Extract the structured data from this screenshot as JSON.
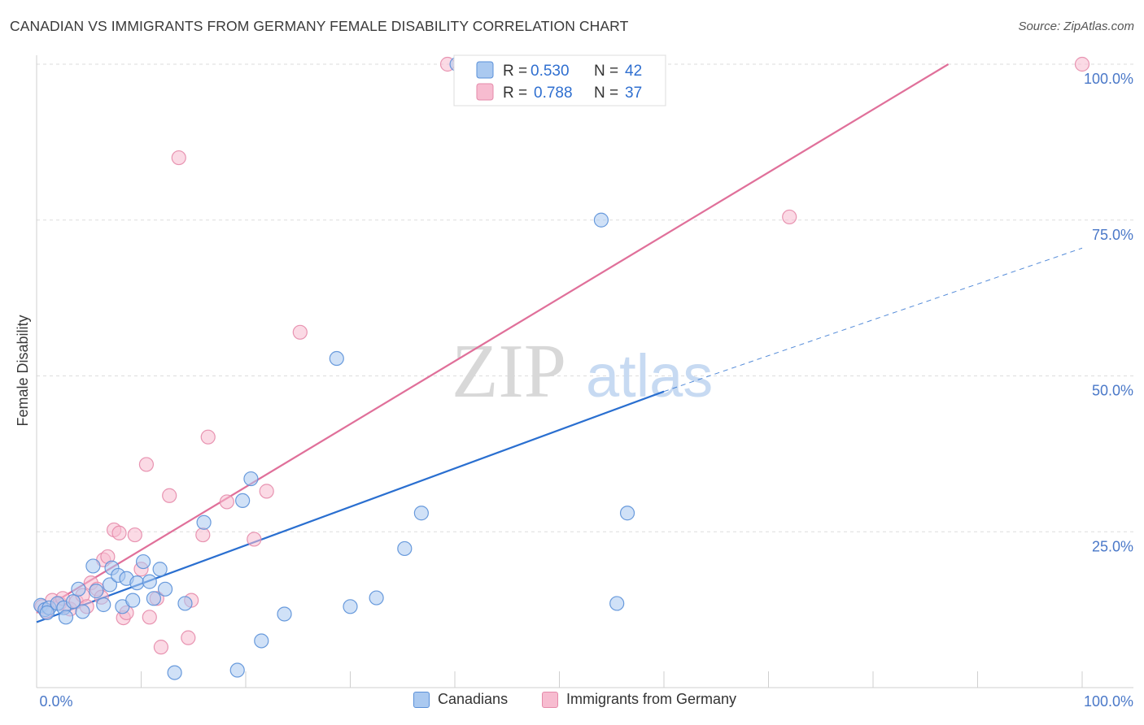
{
  "title": "CANADIAN VS IMMIGRANTS FROM GERMANY FEMALE DISABILITY CORRELATION CHART",
  "source": "Source: ZipAtlas.com",
  "watermark": {
    "zip": "ZIP",
    "atlas": "atlas"
  },
  "colors": {
    "blue_fill": "#aac9f0",
    "blue_stroke": "#5a90d8",
    "blue_line": "#2a6fd0",
    "pink_fill": "#f7bcd0",
    "pink_stroke": "#e58aaa",
    "pink_line": "#e0709a",
    "tick_text": "#4a78c8",
    "grid": "#dddddd"
  },
  "legend": {
    "rows": [
      {
        "r_label": "R =",
        "r_value": "0.530",
        "n_label": "N =",
        "n_value": "42"
      },
      {
        "r_label": "R =",
        "r_value": "0.788",
        "n_label": "N =",
        "n_value": "37"
      }
    ]
  },
  "bottom_legend": {
    "series1": "Canadians",
    "series2": "Immigrants from Germany"
  },
  "chart_data": {
    "type": "scatter",
    "title": "CANADIAN VS IMMIGRANTS FROM GERMANY FEMALE DISABILITY CORRELATION CHART",
    "xlabel": "",
    "ylabel": "Female Disability",
    "xlim": [
      0,
      100
    ],
    "ylim": [
      0,
      100
    ],
    "x_tick_labels": [
      "0.0%",
      "100.0%"
    ],
    "y_tick_labels": [
      {
        "value": 25,
        "label": "25.0%"
      },
      {
        "value": 50,
        "label": "50.0%"
      },
      {
        "value": 75,
        "label": "75.0%"
      },
      {
        "value": 100,
        "label": "100.0%"
      }
    ],
    "series": [
      {
        "name": "Canadians",
        "r": 0.53,
        "n": 42,
        "trend": {
          "x0": 0,
          "y0": 10.5,
          "x1": 60,
          "y1": 47.5,
          "dash_x1": 100,
          "dash_y1": 70.5
        },
        "points": [
          {
            "x": 0.4,
            "y": 13.2
          },
          {
            "x": 0.8,
            "y": 12.5
          },
          {
            "x": 1.2,
            "y": 12.8
          },
          {
            "x": 2.0,
            "y": 13.5
          },
          {
            "x": 2.6,
            "y": 12.8
          },
          {
            "x": 2.8,
            "y": 11.3
          },
          {
            "x": 3.5,
            "y": 13.8
          },
          {
            "x": 4.0,
            "y": 15.8
          },
          {
            "x": 4.4,
            "y": 12.2
          },
          {
            "x": 5.4,
            "y": 19.5
          },
          {
            "x": 5.7,
            "y": 15.5
          },
          {
            "x": 6.4,
            "y": 13.3
          },
          {
            "x": 7.0,
            "y": 16.5
          },
          {
            "x": 7.2,
            "y": 19.2
          },
          {
            "x": 7.8,
            "y": 18.0
          },
          {
            "x": 8.2,
            "y": 13.0
          },
          {
            "x": 8.6,
            "y": 17.5
          },
          {
            "x": 9.2,
            "y": 14.0
          },
          {
            "x": 9.6,
            "y": 16.8
          },
          {
            "x": 10.2,
            "y": 20.2
          },
          {
            "x": 10.8,
            "y": 17.0
          },
          {
            "x": 11.2,
            "y": 14.3
          },
          {
            "x": 11.8,
            "y": 19.0
          },
          {
            "x": 12.3,
            "y": 15.8
          },
          {
            "x": 13.2,
            "y": 2.4
          },
          {
            "x": 14.2,
            "y": 13.5
          },
          {
            "x": 16.0,
            "y": 26.5
          },
          {
            "x": 19.2,
            "y": 2.8
          },
          {
            "x": 19.7,
            "y": 30.0
          },
          {
            "x": 20.5,
            "y": 33.5
          },
          {
            "x": 21.5,
            "y": 7.5
          },
          {
            "x": 23.7,
            "y": 11.8
          },
          {
            "x": 28.7,
            "y": 52.8
          },
          {
            "x": 30.0,
            "y": 13.0
          },
          {
            "x": 32.5,
            "y": 14.4
          },
          {
            "x": 35.2,
            "y": 22.3
          },
          {
            "x": 36.8,
            "y": 28.0
          },
          {
            "x": 40.2,
            "y": 100.0
          },
          {
            "x": 54.0,
            "y": 75.0
          },
          {
            "x": 55.5,
            "y": 13.5
          },
          {
            "x": 56.5,
            "y": 28.0
          },
          {
            "x": 1.0,
            "y": 12.0
          }
        ]
      },
      {
        "name": "Immigrants from Germany",
        "r": 0.788,
        "n": 37,
        "trend": {
          "x0": 0,
          "y0": 12.0,
          "x1": 87.2,
          "y1": 100.0
        },
        "points": [
          {
            "x": 0.5,
            "y": 13.0
          },
          {
            "x": 0.9,
            "y": 12.2
          },
          {
            "x": 1.5,
            "y": 14.0
          },
          {
            "x": 2.2,
            "y": 13.5
          },
          {
            "x": 2.5,
            "y": 14.3
          },
          {
            "x": 3.2,
            "y": 12.6
          },
          {
            "x": 3.8,
            "y": 13.8
          },
          {
            "x": 4.4,
            "y": 14.8
          },
          {
            "x": 4.8,
            "y": 13.0
          },
          {
            "x": 5.2,
            "y": 16.8
          },
          {
            "x": 5.8,
            "y": 15.8
          },
          {
            "x": 6.2,
            "y": 14.5
          },
          {
            "x": 6.4,
            "y": 20.5
          },
          {
            "x": 6.8,
            "y": 21.0
          },
          {
            "x": 7.4,
            "y": 25.3
          },
          {
            "x": 7.9,
            "y": 24.8
          },
          {
            "x": 8.3,
            "y": 11.2
          },
          {
            "x": 8.6,
            "y": 12.0
          },
          {
            "x": 9.4,
            "y": 24.5
          },
          {
            "x": 10.0,
            "y": 19.0
          },
          {
            "x": 10.5,
            "y": 35.8
          },
          {
            "x": 10.8,
            "y": 11.3
          },
          {
            "x": 11.5,
            "y": 14.3
          },
          {
            "x": 11.9,
            "y": 6.5
          },
          {
            "x": 12.7,
            "y": 30.8
          },
          {
            "x": 13.6,
            "y": 85.0
          },
          {
            "x": 14.5,
            "y": 8.0
          },
          {
            "x": 14.8,
            "y": 14.0
          },
          {
            "x": 15.9,
            "y": 24.5
          },
          {
            "x": 16.4,
            "y": 40.2
          },
          {
            "x": 18.2,
            "y": 29.8
          },
          {
            "x": 20.8,
            "y": 23.8
          },
          {
            "x": 22.0,
            "y": 31.5
          },
          {
            "x": 25.2,
            "y": 57.0
          },
          {
            "x": 39.3,
            "y": 100.0
          },
          {
            "x": 72.0,
            "y": 75.5
          },
          {
            "x": 100.0,
            "y": 100.0
          }
        ]
      }
    ]
  }
}
